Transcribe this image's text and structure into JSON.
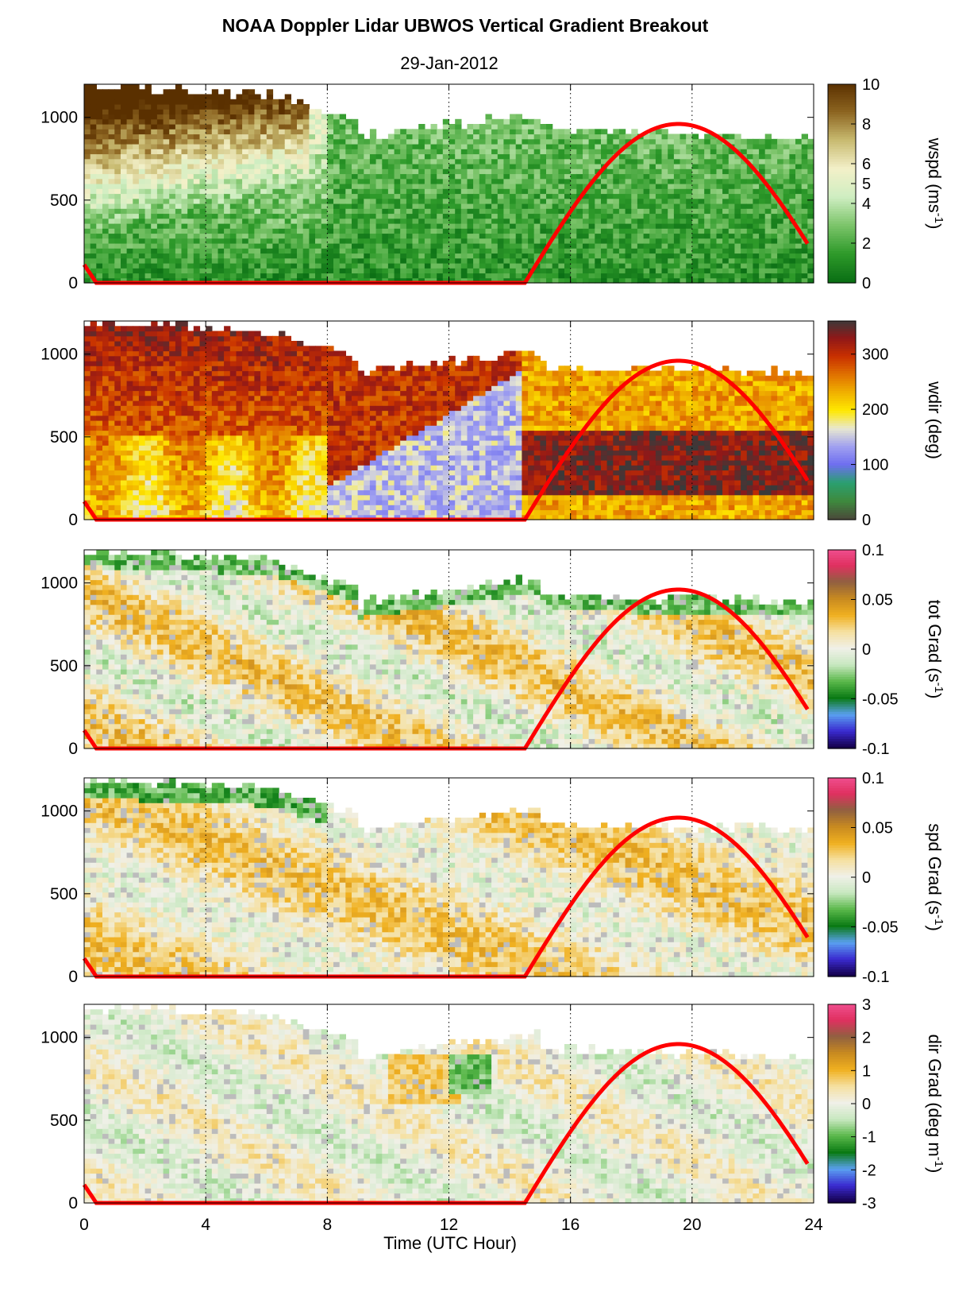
{
  "title": "NOAA Doppler Lidar  UBWOS  Vertical Gradient Breakout",
  "subtitle": "29-Jan-2012",
  "chart_data": {
    "type": "heatmap",
    "xlabel": "Time (UTC Hour)",
    "xlim": [
      0,
      24
    ],
    "xticks": [
      "0",
      "4",
      "8",
      "12",
      "16",
      "20",
      "24"
    ],
    "x_gridlines": [
      4,
      8,
      12,
      16,
      20
    ],
    "ylim": [
      0,
      1200
    ],
    "yticks": [
      "0",
      "500",
      "1000"
    ],
    "overlay_line": {
      "color": "#ff0000",
      "description_points_x": [
        0,
        0.4,
        14.5,
        16,
        18,
        19.5,
        21,
        22.5,
        23.8
      ],
      "description_points_y": [
        110,
        0,
        0,
        420,
        850,
        960,
        870,
        600,
        240
      ]
    },
    "panels": [
      {
        "name": "wspd",
        "ylabel": "wspd (ms",
        "ylabel_sup": "-1",
        "ylabel_tail": ")",
        "colorbar_ticks": [
          "0",
          "2",
          "4",
          "5",
          "6",
          "8",
          "10"
        ],
        "colorbar_values": [
          0,
          2,
          4,
          5,
          6,
          8,
          10
        ],
        "colorbar_range": [
          0,
          10
        ],
        "colormap": [
          "#0a6e14",
          "#2e9a2a",
          "#7cc46a",
          "#cfeec2",
          "#f3f0c8",
          "#c8ba70",
          "#8c6420",
          "#5a3000"
        ]
      },
      {
        "name": "wdir",
        "ylabel": "wdir (deg)",
        "ylabel_sup": "",
        "ylabel_tail": "",
        "colorbar_ticks": [
          "0",
          "100",
          "200",
          "300"
        ],
        "colorbar_values": [
          0,
          100,
          200,
          300
        ],
        "colorbar_range": [
          0,
          360
        ],
        "colormap": [
          "#4a4a3a",
          "#3e8a3e",
          "#2aa070",
          "#6e6ef0",
          "#a0a0f0",
          "#e8e8d0",
          "#ffe800",
          "#f0b000",
          "#e07000",
          "#c83000",
          "#901818",
          "#3a3a3a"
        ]
      },
      {
        "name": "tot Grad",
        "ylabel": "tot Grad (s",
        "ylabel_sup": "-1",
        "ylabel_tail": ")",
        "colorbar_ticks": [
          "-0.1",
          "-0.05",
          "0",
          "0.05",
          "0.1"
        ],
        "colorbar_values": [
          -0.1,
          -0.05,
          0,
          0.05,
          0.1
        ],
        "colorbar_range": [
          -0.1,
          0.1
        ],
        "colormap": [
          "#14004a",
          "#3a2ad0",
          "#5aa0f0",
          "#0a7a14",
          "#5ab84a",
          "#c8e8c0",
          "#f0f0e8",
          "#f5e0a0",
          "#f0b020",
          "#c88a20",
          "#906040",
          "#e03060",
          "#f05090"
        ]
      },
      {
        "name": "spd Grad",
        "ylabel": "spd Grad (s",
        "ylabel_sup": "-1",
        "ylabel_tail": ")",
        "colorbar_ticks": [
          "-0.1",
          "-0.05",
          "0",
          "0.05",
          "0.1"
        ],
        "colorbar_values": [
          -0.1,
          -0.05,
          0,
          0.05,
          0.1
        ],
        "colorbar_range": [
          -0.1,
          0.1
        ],
        "colormap": [
          "#14004a",
          "#3a2ad0",
          "#5aa0f0",
          "#0a7a14",
          "#5ab84a",
          "#c8e8c0",
          "#f0f0e8",
          "#f5e0a0",
          "#f0b020",
          "#c88a20",
          "#906040",
          "#e03060",
          "#f05090"
        ]
      },
      {
        "name": "dir Grad",
        "ylabel": "dir Grad (deg m",
        "ylabel_sup": "-1",
        "ylabel_tail": ")",
        "colorbar_ticks": [
          "-3",
          "-2",
          "-1",
          "0",
          "1",
          "2",
          "3"
        ],
        "colorbar_values": [
          -3,
          -2,
          -1,
          0,
          1,
          2,
          3
        ],
        "colorbar_range": [
          -3,
          3
        ],
        "colormap": [
          "#14004a",
          "#3a2ad0",
          "#5aa0f0",
          "#0a7a14",
          "#5ab84a",
          "#c8e8c0",
          "#f0f0e8",
          "#f5e0a0",
          "#f0b020",
          "#c88a20",
          "#906040",
          "#e03060",
          "#f05090"
        ]
      }
    ]
  }
}
